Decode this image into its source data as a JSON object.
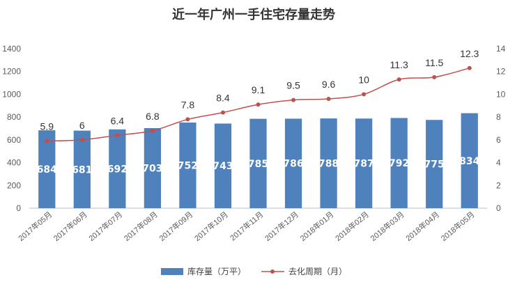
{
  "chart_data": {
    "type": "bar",
    "title": "近一年广州一手住宅存量走势",
    "categories": [
      "2017年05月",
      "2017年06月",
      "2017年07月",
      "2017年08月",
      "2017年09月",
      "2017年10月",
      "2017年11月",
      "2017年12月",
      "2018年01月",
      "2018年02月",
      "2018年03月",
      "2018年04月",
      "2018年05月"
    ],
    "series": [
      {
        "name": "库存量（万平）",
        "type": "bar",
        "axis": "left",
        "color": "#4f81bd",
        "values": [
          684,
          681,
          692,
          703,
          752,
          743,
          785,
          786,
          788,
          787,
          792,
          775,
          834
        ]
      },
      {
        "name": "去化周期（月）",
        "type": "line",
        "axis": "right",
        "color": "#c0504d",
        "values": [
          5.9,
          6,
          6.4,
          6.8,
          7.8,
          8.4,
          9.1,
          9.5,
          9.6,
          10,
          11.3,
          11.5,
          12.3
        ]
      }
    ],
    "y_left": {
      "min": 0,
      "max": 1400,
      "ticks": [
        "0",
        "200",
        "400",
        "600",
        "800",
        "1000",
        "1200",
        "1400"
      ]
    },
    "y_right": {
      "min": 0,
      "max": 14,
      "ticks": [
        "0",
        "2",
        "4",
        "6",
        "8",
        "10",
        "12",
        "14"
      ]
    },
    "grid": false,
    "legend_position": "bottom"
  }
}
